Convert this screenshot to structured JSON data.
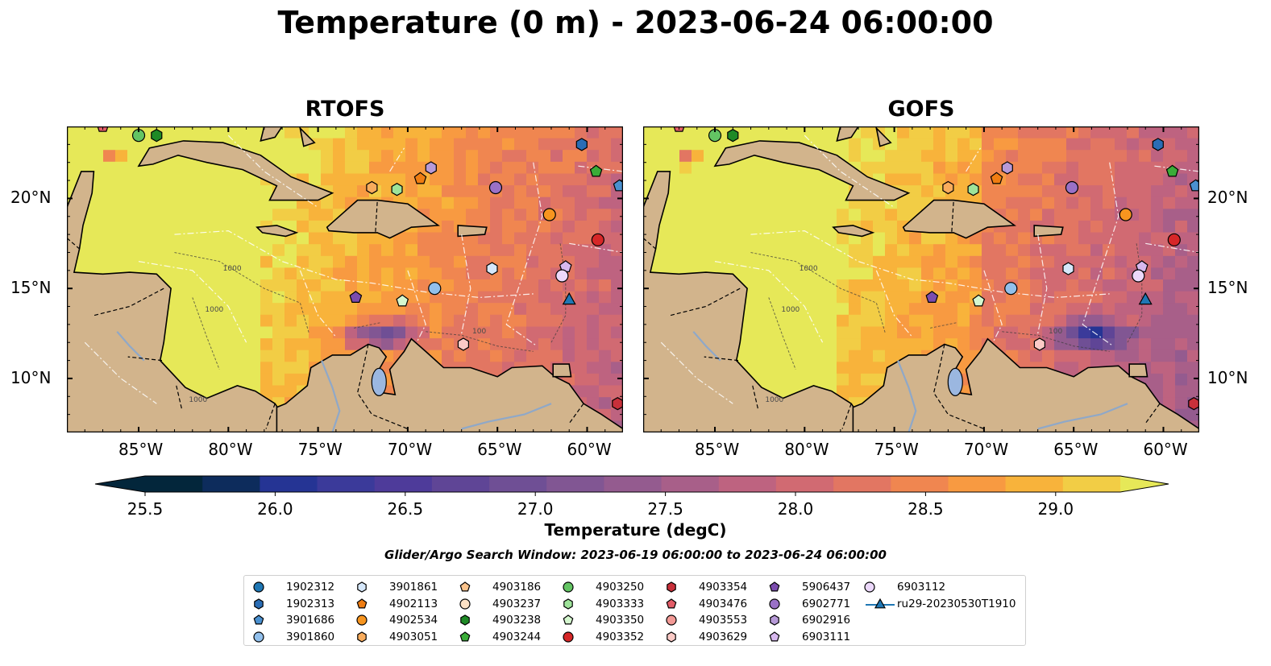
{
  "figure": {
    "title": "Temperature (0 m) - 2023-06-24 06:00:00",
    "panels": [
      {
        "id": "rtofs",
        "title": "RTOFS"
      },
      {
        "id": "gofs",
        "title": "GOFS"
      }
    ],
    "lon_ticks": [
      "85°W",
      "80°W",
      "75°W",
      "70°W",
      "65°W",
      "60°W"
    ],
    "lat_ticks": [
      "20°N",
      "15°N",
      "10°N"
    ],
    "colorbar": {
      "label": "Temperature (degC)",
      "ticks": [
        "25.5",
        "26.0",
        "26.5",
        "27.0",
        "27.5",
        "28.0",
        "28.5",
        "29.0"
      ],
      "colors": [
        "#03263b",
        "#0d2c5c",
        "#253494",
        "#3b3a9a",
        "#4e3b9a",
        "#5f4596",
        "#6f4f95",
        "#815693",
        "#945b8f",
        "#a85f89",
        "#be6380",
        "#d16a72",
        "#e27662",
        "#f08650",
        "#f89a41",
        "#f8b33b",
        "#f2cd45",
        "#e6e858"
      ],
      "min": 25.5,
      "max": 29.25
    },
    "search_window": "Glider/Argo Search Window: 2023-06-19 06:00:00 to 2023-06-24 06:00:00"
  },
  "map_data": {
    "extent": {
      "lon": [
        -89,
        -58
      ],
      "lat": [
        7,
        24
      ]
    },
    "contour_labels": [
      "1000",
      "100"
    ]
  },
  "legend": [
    {
      "label": "1902312",
      "marker": "circle",
      "color": "#1f77b4"
    },
    {
      "label": "1902313",
      "marker": "hexagon",
      "color": "#2a6db5"
    },
    {
      "label": "3901686",
      "marker": "pentagon",
      "color": "#4a90d0"
    },
    {
      "label": "3901860",
      "marker": "circle",
      "color": "#92c0ec"
    },
    {
      "label": "3901861",
      "marker": "hexagon",
      "color": "#d6e8fb"
    },
    {
      "label": "4902113",
      "marker": "pentagon",
      "color": "#ef7d12"
    },
    {
      "label": "4902534",
      "marker": "circle",
      "color": "#f7951f"
    },
    {
      "label": "4903051",
      "marker": "hexagon",
      "color": "#f9ac5c"
    },
    {
      "label": "4903186",
      "marker": "pentagon",
      "color": "#fbc38c"
    },
    {
      "label": "4903237",
      "marker": "circle",
      "color": "#fde2c6"
    },
    {
      "label": "4903238",
      "marker": "hexagon",
      "color": "#1e8a26"
    },
    {
      "label": "4903244",
      "marker": "pentagon",
      "color": "#3aac38"
    },
    {
      "label": "4903250",
      "marker": "circle",
      "color": "#63c463"
    },
    {
      "label": "4903333",
      "marker": "hexagon",
      "color": "#9ee39a"
    },
    {
      "label": "4903350",
      "marker": "pentagon",
      "color": "#d5f7cf"
    },
    {
      "label": "4903352",
      "marker": "circle",
      "color": "#d62728"
    },
    {
      "label": "4903354",
      "marker": "hexagon",
      "color": "#c8303a"
    },
    {
      "label": "4903476",
      "marker": "pentagon",
      "color": "#e35d68"
    },
    {
      "label": "4903553",
      "marker": "circle",
      "color": "#f39a96"
    },
    {
      "label": "4903629",
      "marker": "hexagon",
      "color": "#fbcac6"
    },
    {
      "label": "5906437",
      "marker": "pentagon",
      "color": "#7b4cae"
    },
    {
      "label": "6902771",
      "marker": "circle",
      "color": "#9a71c7"
    },
    {
      "label": "6902916",
      "marker": "hexagon",
      "color": "#b79ad8"
    },
    {
      "label": "6903111",
      "marker": "pentagon",
      "color": "#d7b8ee"
    },
    {
      "label": "6903112",
      "marker": "circle",
      "color": "#ecd8fb"
    },
    {
      "label": "ru29-20230530T1910",
      "marker": "triangle-line",
      "color": "#1f77b4"
    }
  ],
  "observations": [
    {
      "id": "4903250",
      "lon": -85.0,
      "lat": 23.5,
      "marker": "circle",
      "color": "#63c463"
    },
    {
      "id": "4903238",
      "lon": -84.0,
      "lat": 23.5,
      "marker": "hexagon",
      "color": "#1e8a26"
    },
    {
      "id": "4903476",
      "lon": -87.0,
      "lat": 24.0,
      "marker": "pentagon",
      "color": "#e35d68"
    },
    {
      "id": "1902313",
      "lon": -60.3,
      "lat": 23.0,
      "marker": "hexagon",
      "color": "#2a6db5"
    },
    {
      "id": "4903244",
      "lon": -59.5,
      "lat": 21.5,
      "marker": "pentagon",
      "color": "#3aac38"
    },
    {
      "id": "3901686",
      "lon": -58.2,
      "lat": 20.7,
      "marker": "pentagon",
      "color": "#4a90d0"
    },
    {
      "id": "6902916",
      "lon": -68.7,
      "lat": 21.7,
      "marker": "hexagon",
      "color": "#b79ad8"
    },
    {
      "id": "4902113",
      "lon": -69.3,
      "lat": 21.1,
      "marker": "pentagon",
      "color": "#ef7d12"
    },
    {
      "id": "4903051",
      "lon": -72.0,
      "lat": 20.6,
      "marker": "hexagon",
      "color": "#f9ac5c"
    },
    {
      "id": "4903333",
      "lon": -70.6,
      "lat": 20.5,
      "marker": "hexagon",
      "color": "#9ee39a"
    },
    {
      "id": "6902771",
      "lon": -65.1,
      "lat": 20.6,
      "marker": "circle",
      "color": "#9a71c7"
    },
    {
      "id": "4902534",
      "lon": -62.1,
      "lat": 19.1,
      "marker": "circle",
      "color": "#f7951f"
    },
    {
      "id": "4903352",
      "lon": -59.4,
      "lat": 17.7,
      "marker": "circle",
      "color": "#d62728"
    },
    {
      "id": "3901861",
      "lon": -65.3,
      "lat": 16.1,
      "marker": "hexagon",
      "color": "#d6e8fb"
    },
    {
      "id": "6903111",
      "lon": -61.2,
      "lat": 16.2,
      "marker": "pentagon",
      "color": "#d7b8ee"
    },
    {
      "id": "6903112",
      "lon": -61.4,
      "lat": 15.7,
      "marker": "circle",
      "color": "#ecd8fb"
    },
    {
      "id": "3901860",
      "lon": -68.5,
      "lat": 15.0,
      "marker": "circle",
      "color": "#92c0ec"
    },
    {
      "id": "5906437",
      "lon": -72.9,
      "lat": 14.5,
      "marker": "pentagon",
      "color": "#7b4cae"
    },
    {
      "id": "4903350",
      "lon": -70.3,
      "lat": 14.3,
      "marker": "pentagon",
      "color": "#d5f7cf"
    },
    {
      "id": "ru29-20230530T1910",
      "lon": -61.0,
      "lat": 14.4,
      "marker": "triangle",
      "color": "#1f77b4"
    },
    {
      "id": "4903629",
      "lon": -66.9,
      "lat": 11.9,
      "marker": "hexagon",
      "color": "#fbcac6"
    },
    {
      "id": "4903354",
      "lon": -58.3,
      "lat": 8.6,
      "marker": "hexagon",
      "color": "#c8303a"
    }
  ]
}
